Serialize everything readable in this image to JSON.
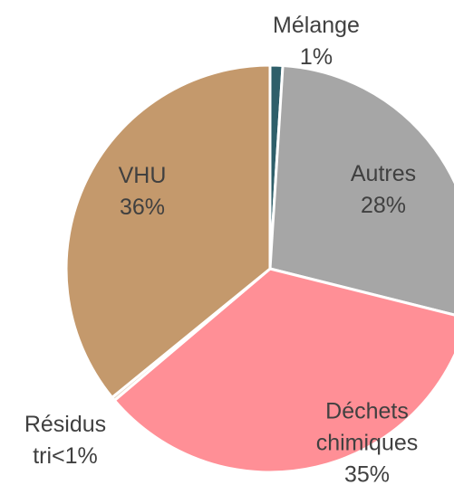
{
  "chart_data": {
    "type": "pie",
    "categories": [
      "Mélange",
      "Autres",
      "Déchets chimiques",
      "Résidus tri",
      "VHU"
    ],
    "values": [
      1,
      28,
      35,
      0.3,
      36
    ],
    "value_labels": [
      "1%",
      "28%",
      "35%",
      "<1%",
      "36%"
    ],
    "colors": [
      "#2f5f6a",
      "#a6a6a6",
      "#ff8f96",
      "#e8d8c8",
      "#c4996c"
    ]
  }
}
